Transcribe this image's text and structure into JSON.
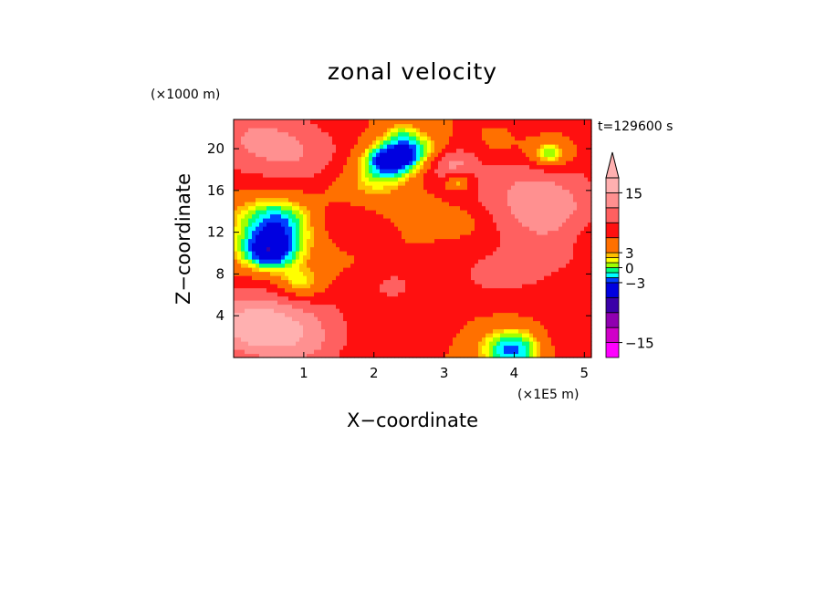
{
  "chart_data": {
    "type": "heatmap",
    "title": "zonal velocity",
    "xlabel": "X−coordinate",
    "ylabel": "Z−coordinate",
    "x_unit": "(×1E5 m)",
    "y_unit": "(×1000 m)",
    "time_label": "t=129600 s",
    "xlim": [
      0,
      5.1
    ],
    "ylim": [
      0,
      22.8
    ],
    "x_ticks": [
      1,
      2,
      3,
      4,
      5
    ],
    "y_ticks": [
      4,
      8,
      12,
      16,
      20
    ],
    "colorbar": {
      "levels": [
        -18,
        -15,
        -12,
        -9,
        -6,
        -3,
        -2,
        -1,
        0,
        1,
        2,
        3,
        6,
        9,
        12,
        15,
        18
      ],
      "colors": [
        "#ff00ff",
        "#d000c8",
        "#9000b0",
        "#3a00a8",
        "#0000e0",
        "#0040ff",
        "#00ffff",
        "#00ff80",
        "#a0ff00",
        "#ffff00",
        "#ffc000",
        "#ff7000",
        "#ff1010",
        "#ff6060",
        "#ff9090",
        "#ffb0b0"
      ],
      "extend_color": "#ffb0b0",
      "tick_labels": [
        {
          "value": 15,
          "label": "15"
        },
        {
          "value": 3,
          "label": "3"
        },
        {
          "value": 0,
          "label": "0"
        },
        {
          "value": -3,
          "label": "−3"
        },
        {
          "value": -15,
          "label": "−15"
        }
      ]
    },
    "field": {
      "background": 6,
      "blobs": [
        {
          "x": 0.15,
          "z": 3.0,
          "r": 0.6,
          "v": 7
        },
        {
          "x": 0.9,
          "z": 1.5,
          "r": 0.7,
          "v": 6
        },
        {
          "x": 0.6,
          "z": 5.0,
          "r": 0.9,
          "v": 5
        },
        {
          "x": 0.4,
          "z": 9.0,
          "r": 0.9,
          "v": -2
        },
        {
          "x": 0.6,
          "z": 13.0,
          "r": 0.6,
          "v": -8
        },
        {
          "x": 0.5,
          "z": 10.0,
          "r": 0.4,
          "v": -8
        },
        {
          "x": 0.95,
          "z": 7.0,
          "r": 0.35,
          "v": -6
        },
        {
          "x": 1.2,
          "z": 9.0,
          "r": 0.8,
          "v": -1
        },
        {
          "x": 1.9,
          "z": 6.5,
          "r": 0.6,
          "v": 1
        },
        {
          "x": 2.3,
          "z": 7.0,
          "r": 0.35,
          "v": 3
        },
        {
          "x": 0.3,
          "z": 21.0,
          "r": 0.8,
          "v": 6
        },
        {
          "x": 1.1,
          "z": 19.0,
          "r": 0.7,
          "v": 4
        },
        {
          "x": 1.6,
          "z": 13.0,
          "r": 0.5,
          "v": 4
        },
        {
          "x": 1.9,
          "z": 16.5,
          "r": 0.6,
          "v": -4
        },
        {
          "x": 2.2,
          "z": 19.0,
          "r": 0.4,
          "v": -9
        },
        {
          "x": 2.7,
          "z": 19.5,
          "r": 0.4,
          "v": -7
        },
        {
          "x": 2.4,
          "z": 21.5,
          "r": 0.3,
          "v": -4
        },
        {
          "x": 3.05,
          "z": 18.5,
          "r": 0.4,
          "v": 8
        },
        {
          "x": 3.2,
          "z": 17.0,
          "r": 0.2,
          "v": -8
        },
        {
          "x": 2.9,
          "z": 14.0,
          "r": 0.5,
          "v": -1
        },
        {
          "x": 3.3,
          "z": 13.0,
          "r": 0.35,
          "v": -2
        },
        {
          "x": 3.8,
          "z": 20.0,
          "r": 0.4,
          "v": -2
        },
        {
          "x": 4.2,
          "z": 16.0,
          "r": 0.9,
          "v": 6
        },
        {
          "x": 4.7,
          "z": 13.0,
          "r": 0.7,
          "v": 5
        },
        {
          "x": 4.5,
          "z": 19.5,
          "r": 0.3,
          "v": -8
        },
        {
          "x": 5.0,
          "z": 12.0,
          "r": 0.5,
          "v": -3
        },
        {
          "x": 4.6,
          "z": 8.0,
          "r": 0.8,
          "v": 3
        },
        {
          "x": 4.9,
          "z": 6.5,
          "r": 0.5,
          "v": -2
        },
        {
          "x": 4.0,
          "z": 0.8,
          "r": 0.5,
          "v": -9
        },
        {
          "x": 4.8,
          "z": 1.5,
          "r": 0.6,
          "v": 3
        },
        {
          "x": 3.6,
          "z": 8.0,
          "r": 0.6,
          "v": 3
        },
        {
          "x": 2.6,
          "z": 3.0,
          "r": 0.6,
          "v": 1
        }
      ]
    }
  }
}
